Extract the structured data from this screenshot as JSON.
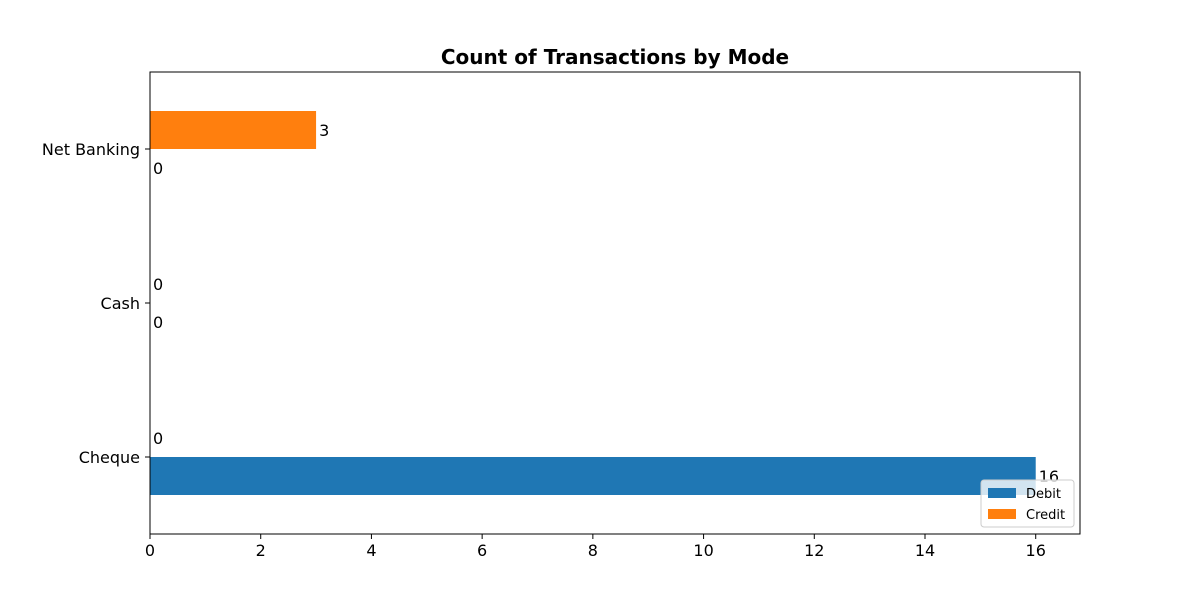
{
  "chart_data": {
    "type": "bar",
    "orientation": "horizontal",
    "title": "Count of Transactions by Mode",
    "xlabel": "",
    "ylabel": "",
    "categories": [
      "Cheque",
      "Cash",
      "Net Banking"
    ],
    "series": [
      {
        "name": "Debit",
        "values": [
          16,
          0,
          0
        ],
        "color": "#1f77b4"
      },
      {
        "name": "Credit",
        "values": [
          0,
          0,
          3
        ],
        "color": "#ff7f0e"
      }
    ],
    "data_labels": [
      {
        "series": "Debit",
        "category": "Cheque",
        "text": "16"
      },
      {
        "series": "Debit",
        "category": "Cash",
        "text": "0"
      },
      {
        "series": "Debit",
        "category": "Net Banking",
        "text": "0"
      },
      {
        "series": "Credit",
        "category": "Cheque",
        "text": "0"
      },
      {
        "series": "Credit",
        "category": "Cash",
        "text": "0"
      },
      {
        "series": "Credit",
        "category": "Net Banking",
        "text": "3"
      }
    ],
    "xlim": [
      0,
      16.8
    ],
    "xticks": [
      "0",
      "2",
      "4",
      "6",
      "8",
      "10",
      "12",
      "14",
      "16"
    ],
    "grid": false,
    "legend": {
      "placement": "bottom-right",
      "entries": [
        "Debit",
        "Credit"
      ]
    }
  }
}
